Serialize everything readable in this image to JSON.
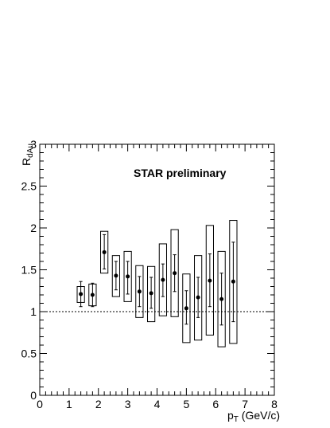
{
  "chart_data": {
    "type": "scatter",
    "annotation": "STAR preliminary",
    "xlabel": {
      "main": "p",
      "sub": "T",
      "rest": " (GeV/c)"
    },
    "ylabel": {
      "main": "R",
      "sub": "dAu"
    },
    "xlim": [
      0,
      8
    ],
    "ylim": [
      0,
      3
    ],
    "x_ticks": [
      "0",
      "1",
      "2",
      "3",
      "4",
      "5",
      "6",
      "7",
      "8"
    ],
    "y_ticks": [
      "0",
      "0.5",
      "1",
      "1.5",
      "2",
      "2.5",
      "3"
    ],
    "reference_line": 1,
    "points": [
      {
        "x": 1.4,
        "y": 1.21,
        "stat_lo": 1.06,
        "stat_hi": 1.36,
        "sys_lo": 1.11,
        "sys_hi": 1.3
      },
      {
        "x": 1.8,
        "y": 1.2,
        "stat_lo": 1.06,
        "stat_hi": 1.34,
        "sys_lo": 1.07,
        "sys_hi": 1.33
      },
      {
        "x": 2.2,
        "y": 1.71,
        "stat_lo": 1.51,
        "stat_hi": 1.92,
        "sys_lo": 1.46,
        "sys_hi": 1.96
      },
      {
        "x": 2.6,
        "y": 1.43,
        "stat_lo": 1.26,
        "stat_hi": 1.6,
        "sys_lo": 1.18,
        "sys_hi": 1.67
      },
      {
        "x": 3.0,
        "y": 1.42,
        "stat_lo": 1.21,
        "stat_hi": 1.6,
        "sys_lo": 1.12,
        "sys_hi": 1.72
      },
      {
        "x": 3.4,
        "y": 1.24,
        "stat_lo": 1.06,
        "stat_hi": 1.42,
        "sys_lo": 0.93,
        "sys_hi": 1.55
      },
      {
        "x": 3.8,
        "y": 1.22,
        "stat_lo": 1.04,
        "stat_hi": 1.41,
        "sys_lo": 0.88,
        "sys_hi": 1.54
      },
      {
        "x": 4.2,
        "y": 1.38,
        "stat_lo": 1.18,
        "stat_hi": 1.57,
        "sys_lo": 0.95,
        "sys_hi": 1.81
      },
      {
        "x": 4.6,
        "y": 1.46,
        "stat_lo": 1.24,
        "stat_hi": 1.68,
        "sys_lo": 0.94,
        "sys_hi": 1.98
      },
      {
        "x": 5.0,
        "y": 1.04,
        "stat_lo": 0.85,
        "stat_hi": 1.25,
        "sys_lo": 0.63,
        "sys_hi": 1.45
      },
      {
        "x": 5.4,
        "y": 1.17,
        "stat_lo": 0.93,
        "stat_hi": 1.41,
        "sys_lo": 0.66,
        "sys_hi": 1.67
      },
      {
        "x": 5.8,
        "y": 1.37,
        "stat_lo": 1.06,
        "stat_hi": 1.69,
        "sys_lo": 0.72,
        "sys_hi": 2.03
      },
      {
        "x": 6.2,
        "y": 1.15,
        "stat_lo": 0.84,
        "stat_hi": 1.46,
        "sys_lo": 0.58,
        "sys_hi": 1.72
      },
      {
        "x": 6.6,
        "y": 1.36,
        "stat_lo": 0.88,
        "stat_hi": 1.83,
        "sys_lo": 0.62,
        "sys_hi": 2.09
      }
    ]
  }
}
